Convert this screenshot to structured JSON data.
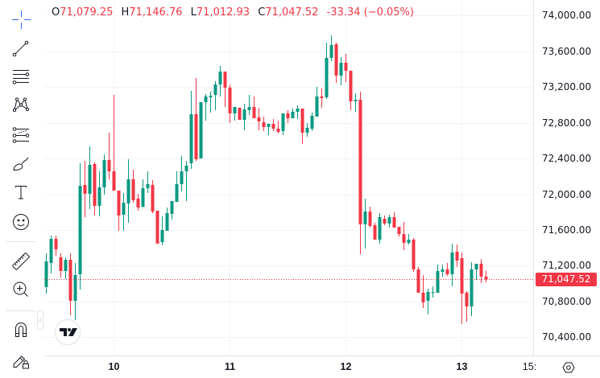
{
  "legend": {
    "open_label": "O",
    "open": "71,079.25",
    "high_label": "H",
    "high": "71,146.76",
    "low_label": "L",
    "low": "71,012.93",
    "close_label": "C",
    "close": "71,047.52",
    "change": "-33.34 (−0.05%)"
  },
  "toolbar": {
    "tools": [
      {
        "id": "crosshair",
        "icon": "crosshair-icon",
        "active": true
      },
      {
        "id": "trend-line",
        "icon": "trend-line-icon"
      },
      {
        "id": "fib-retracement",
        "icon": "fib-lines-icon"
      },
      {
        "id": "pattern",
        "icon": "xabcd-pattern-icon"
      },
      {
        "id": "prediction",
        "icon": "forecast-lines-icon"
      },
      {
        "id": "brush",
        "icon": "brush-icon"
      },
      {
        "id": "text",
        "icon": "text-icon"
      },
      {
        "id": "icons",
        "icon": "smiley-icon"
      },
      {
        "id": "measure",
        "icon": "ruler-icon"
      },
      {
        "id": "zoom-in",
        "icon": "zoom-in-icon"
      },
      {
        "id": "magnet",
        "icon": "magnet-icon"
      },
      {
        "id": "lock-drawings",
        "icon": "pencil-lock-icon"
      }
    ],
    "collapse_glyph": "‹"
  },
  "price_axis": {
    "last_price": "71,047.52"
  },
  "colors": {
    "up": "#089981",
    "down": "#F23645",
    "grid": "#F2F4F7",
    "accent": "#2962FF",
    "text": "#131722"
  },
  "chart_data": {
    "type": "candlestick",
    "title": "",
    "interval": "1h",
    "xlabel": "",
    "ylabel": "",
    "ylim": [
      70195.7,
      74173.7
    ],
    "grid": true,
    "yticks": [
      74000,
      73600,
      73200,
      72800,
      72400,
      72000,
      71600,
      71200,
      70800,
      70400
    ],
    "ytick_labels": [
      "74,000.00",
      "73,600.00",
      "73,200.00",
      "72,800.00",
      "72,400.00",
      "72,000.00",
      "71,600.00",
      "71,200.00",
      "70,800.00",
      "70,400.00"
    ],
    "x_labels": [
      {
        "label": "10",
        "index": 14,
        "bold": true
      },
      {
        "label": "11",
        "index": 38,
        "bold": true
      },
      {
        "label": "12",
        "index": 62,
        "bold": true
      },
      {
        "label": "13",
        "index": 86,
        "bold": true
      },
      {
        "label": "15:",
        "index": 100,
        "bold": false
      }
    ],
    "last_price": 71047.52,
    "ohlc_fields": [
      "open",
      "high",
      "low",
      "close"
    ],
    "candles": [
      [
        70961,
        71339,
        70889,
        71249
      ],
      [
        71231,
        71537,
        71114,
        71501
      ],
      [
        71501,
        71537,
        71312,
        71384
      ],
      [
        71294,
        71339,
        71069,
        71141
      ],
      [
        71141,
        71294,
        71051,
        71267
      ],
      [
        71267,
        71339,
        70646,
        70808
      ],
      [
        70808,
        71231,
        70592,
        71096
      ],
      [
        71105,
        72347,
        70934,
        72095
      ],
      [
        72104,
        72374,
        71744,
        72005
      ],
      [
        72005,
        72536,
        71834,
        72329
      ],
      [
        72338,
        72356,
        71762,
        71870
      ],
      [
        71870,
        72257,
        71753,
        72077
      ],
      [
        72077,
        72446,
        71996,
        72383
      ],
      [
        72383,
        72689,
        72167,
        72257
      ],
      [
        72257,
        73112,
        72041,
        72041
      ],
      [
        72041,
        72041,
        71591,
        71762
      ],
      [
        71771,
        72014,
        71591,
        71906
      ],
      [
        71897,
        72392,
        71681,
        72167
      ],
      [
        72167,
        72275,
        71906,
        71933
      ],
      [
        71951,
        72005,
        71816,
        71852
      ],
      [
        71861,
        72167,
        71852,
        72068
      ],
      [
        72068,
        72257,
        72014,
        72113
      ],
      [
        72104,
        72158,
        71789,
        71807
      ],
      [
        71816,
        71816,
        71447,
        71447
      ],
      [
        71465,
        71753,
        71429,
        71600
      ],
      [
        71591,
        71852,
        71591,
        71789
      ],
      [
        71780,
        71924,
        71717,
        71924
      ],
      [
        71915,
        72257,
        71915,
        72113
      ],
      [
        72113,
        72428,
        72032,
        72257
      ],
      [
        72257,
        72374,
        71924,
        72320
      ],
      [
        72347,
        73157,
        72284,
        72896
      ],
      [
        72896,
        73301,
        72374,
        72392
      ],
      [
        72401,
        73031,
        72401,
        73031
      ],
      [
        73031,
        73121,
        72824,
        73094
      ],
      [
        73085,
        73148,
        72914,
        73103
      ],
      [
        73112,
        73265,
        72941,
        73229
      ],
      [
        73229,
        73436,
        73094,
        73373
      ],
      [
        73373,
        73373,
        72977,
        73193
      ],
      [
        73193,
        73229,
        72797,
        72905
      ],
      [
        72905,
        72977,
        72824,
        72977
      ],
      [
        72968,
        72968,
        72833,
        72833
      ],
      [
        72833,
        73013,
        72716,
        72950
      ],
      [
        72941,
        73112,
        72887,
        72977
      ],
      [
        72977,
        73094,
        72851,
        72851
      ],
      [
        72860,
        72968,
        72716,
        72815
      ],
      [
        72806,
        72869,
        72707,
        72752
      ],
      [
        72752,
        72788,
        72662,
        72788
      ],
      [
        72788,
        72842,
        72707,
        72734
      ],
      [
        72734,
        72824,
        72680,
        72698
      ],
      [
        72707,
        72905,
        72662,
        72905
      ],
      [
        72905,
        72941,
        72797,
        72851
      ],
      [
        72851,
        72959,
        72851,
        72923
      ],
      [
        72923,
        72995,
        72842,
        72959
      ],
      [
        72959,
        72959,
        72563,
        72689
      ],
      [
        72689,
        72797,
        72644,
        72743
      ],
      [
        72734,
        72914,
        72707,
        72878
      ],
      [
        72869,
        73202,
        72869,
        73094
      ],
      [
        73094,
        73184,
        72968,
        73076
      ],
      [
        73085,
        73696,
        73067,
        73526
      ],
      [
        73526,
        73778,
        73490,
        73670
      ],
      [
        73678,
        73696,
        73247,
        73328
      ],
      [
        73328,
        73535,
        73220,
        73472
      ],
      [
        73472,
        73571,
        73256,
        73382
      ],
      [
        73382,
        73382,
        72941,
        73040
      ],
      [
        73040,
        73130,
        72923,
        73058
      ],
      [
        73058,
        73148,
        71330,
        71663
      ],
      [
        71663,
        71951,
        71393,
        71807
      ],
      [
        71807,
        71861,
        71627,
        71645
      ],
      [
        71654,
        71681,
        71492,
        71492
      ],
      [
        71492,
        71789,
        71447,
        71744
      ],
      [
        71726,
        71762,
        71654,
        71672
      ],
      [
        71672,
        71771,
        71627,
        71744
      ],
      [
        71744,
        71798,
        71627,
        71627
      ],
      [
        71636,
        71636,
        71528,
        71555
      ],
      [
        71555,
        71690,
        71375,
        71456
      ],
      [
        71456,
        71555,
        71438,
        71492
      ],
      [
        71492,
        71510,
        71132,
        71159
      ],
      [
        71159,
        71186,
        70898,
        70898
      ],
      [
        70898,
        71096,
        70727,
        70790
      ],
      [
        70808,
        70943,
        70655,
        70907
      ],
      [
        70898,
        70970,
        70844,
        70907
      ],
      [
        70898,
        71213,
        70898,
        71141
      ],
      [
        71132,
        71213,
        71078,
        71159
      ],
      [
        71159,
        71231,
        71087,
        71105
      ],
      [
        71105,
        71447,
        70970,
        71348
      ],
      [
        71357,
        71438,
        71186,
        71258
      ],
      [
        71285,
        71348,
        70547,
        70889
      ],
      [
        70898,
        70916,
        70574,
        70745
      ],
      [
        70745,
        71240,
        70637,
        71159
      ],
      [
        71159,
        71222,
        71042,
        71222
      ],
      [
        71222,
        71276,
        71006,
        71078
      ],
      [
        71079.25,
        71146.76,
        71012.93,
        71047.52
      ]
    ]
  }
}
